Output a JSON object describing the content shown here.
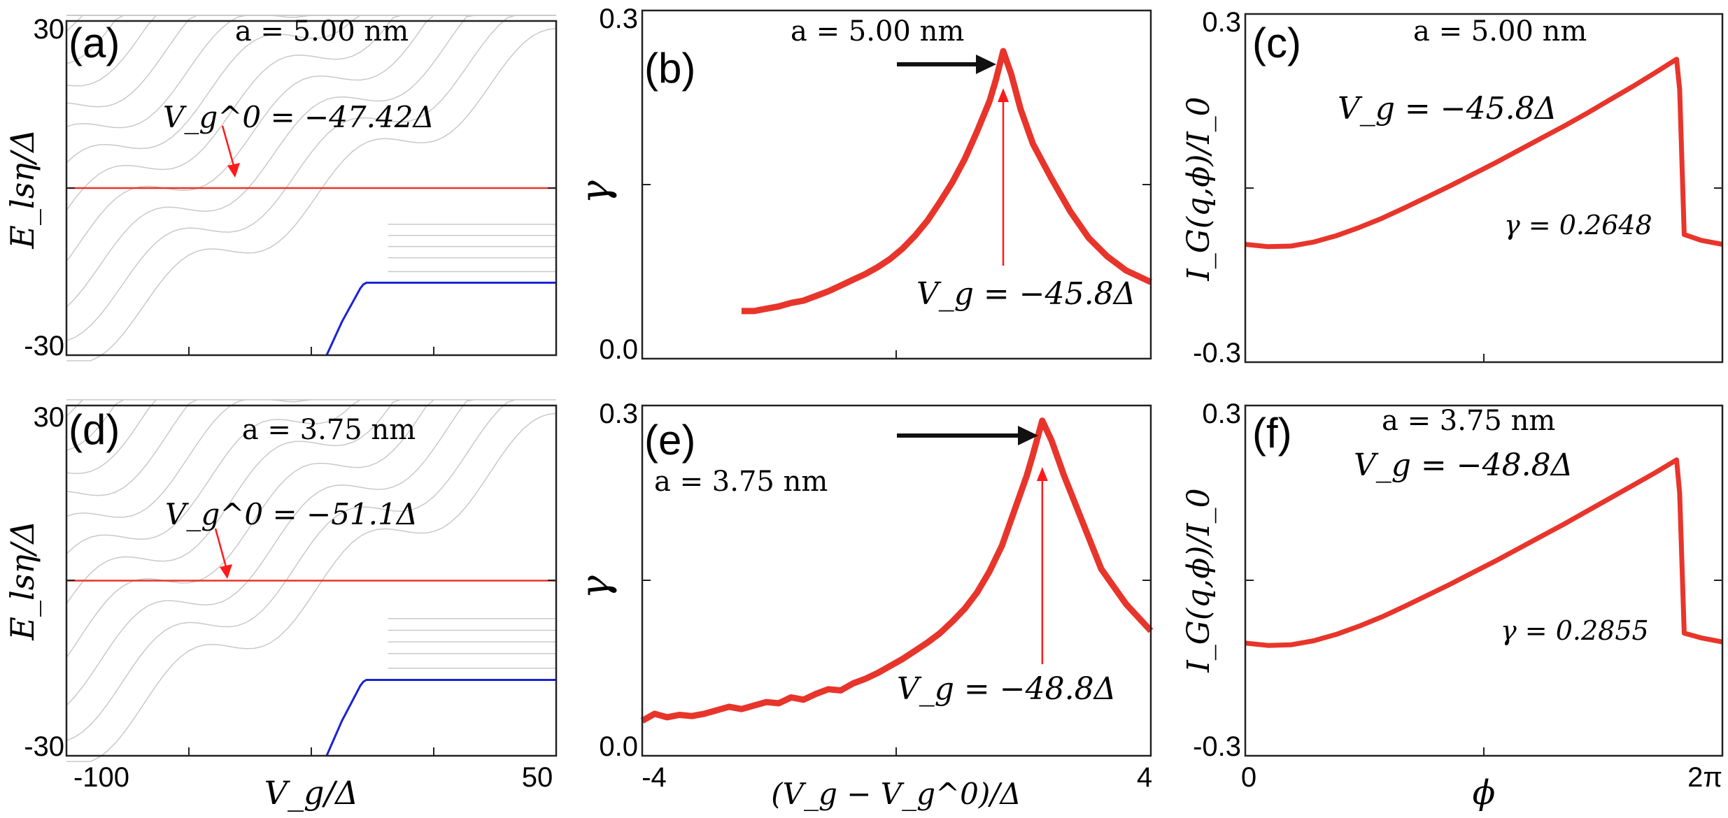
{
  "colors": {
    "red": "#e8352b",
    "grid": "#c9c9c9",
    "blue": "#1a22d6",
    "black": "#111111",
    "arrow_red": "#ff1a1a"
  },
  "panels": {
    "a": {
      "label": "(a)",
      "a_text": "a = 5.00 nm",
      "v0_text": "V_g^0 = −47.42Δ",
      "ylabel": "E_lsη/Δ",
      "y_ticks": [
        "30",
        "-30"
      ]
    },
    "b": {
      "label": "(b)",
      "a_text": "a = 5.00 nm",
      "vg_text": "V_g = −45.8Δ",
      "ylabel": "γ",
      "y_ticks": [
        "0.3",
        "0.0"
      ]
    },
    "c": {
      "label": "(c)",
      "a_text": "a = 5.00 nm",
      "vg_text": "V_g = −45.8Δ",
      "gamma_text": "γ = 0.2648",
      "ylabel": "I_G(q,ϕ)/I_0",
      "y_ticks": [
        "0.3",
        "-0.3"
      ]
    },
    "d": {
      "label": "(d)",
      "a_text": "a = 3.75 nm",
      "v0_text": "V_g^0 = −51.1Δ",
      "ylabel": "E_lsη/Δ",
      "y_ticks": [
        "30",
        "-30"
      ],
      "x_ticks": [
        "-100",
        "50"
      ],
      "xlabel": "V_g/Δ"
    },
    "e": {
      "label": "(e)",
      "a_text": "a = 3.75 nm",
      "vg_text": "V_g = −48.8Δ",
      "ylabel": "γ",
      "y_ticks": [
        "0.3",
        "0.0"
      ],
      "x_ticks": [
        "-4",
        "4"
      ],
      "xlabel": "(V_g − V_g^0)/Δ"
    },
    "f": {
      "label": "(f)",
      "a_text": "a = 3.75 nm",
      "vg_text": "V_g = −48.8Δ",
      "gamma_text": "γ = 0.2855",
      "ylabel": "I_G(q,ϕ)/I_0",
      "y_ticks": [
        "0.3",
        "-0.3"
      ],
      "x_ticks": [
        "0",
        "2π"
      ],
      "xlabel": "ϕ"
    }
  },
  "chart_data": [
    {
      "panel": "a",
      "type": "line",
      "title": "",
      "xlabel": "V_g/Δ",
      "ylabel": "E_lsη/Δ",
      "xlim": [
        -110,
        50
      ],
      "ylim": [
        -30,
        30
      ],
      "reference_line": {
        "y": 0,
        "label": "V_g^0 = −47.42Δ"
      },
      "ground_state": {
        "x": [
          -25,
          -20,
          -16,
          -14,
          -13,
          -12,
          50
        ],
        "y": [
          -30,
          -24,
          -20,
          -18,
          -17.3,
          -17,
          -17
        ]
      },
      "note": "grey curves: level spectrum E_lsη(V_g)"
    },
    {
      "panel": "b",
      "type": "line",
      "title": "",
      "xlabel": "(V_g − V_g^0)/Δ",
      "ylabel": "γ",
      "xlim": [
        -4.2,
        4
      ],
      "ylim": [
        0,
        0.3
      ],
      "series": [
        {
          "name": "a = 5.00 nm",
          "x": [
            -2.6,
            -2.4,
            -2.2,
            -2.0,
            -1.8,
            -1.6,
            -1.4,
            -1.2,
            -1.0,
            -0.8,
            -0.6,
            -0.4,
            -0.2,
            0.0,
            0.2,
            0.4,
            0.6,
            0.8,
            1.0,
            1.2,
            1.4,
            1.5,
            1.62,
            1.75,
            1.9,
            2.1,
            2.4,
            2.7,
            3.0,
            3.3,
            3.6,
            4.0
          ],
          "y": [
            0.041,
            0.041,
            0.043,
            0.045,
            0.048,
            0.05,
            0.054,
            0.058,
            0.063,
            0.068,
            0.073,
            0.079,
            0.086,
            0.095,
            0.106,
            0.119,
            0.135,
            0.152,
            0.172,
            0.196,
            0.222,
            0.24,
            0.265,
            0.245,
            0.215,
            0.185,
            0.155,
            0.127,
            0.104,
            0.088,
            0.076,
            0.066
          ]
        }
      ],
      "annotation": {
        "x": 1.62,
        "label": "V_g = −45.8Δ"
      }
    },
    {
      "panel": "c",
      "type": "line",
      "title": "",
      "xlabel": "ϕ",
      "ylabel": "I_G(q,ϕ)/I_0",
      "xlim": [
        0,
        6.283
      ],
      "ylim": [
        -0.3,
        0.3
      ],
      "series": [
        {
          "name": "γ = 0.2648",
          "x": [
            0,
            0.3,
            0.6,
            0.9,
            1.2,
            1.5,
            1.8,
            2.1,
            2.4,
            2.7,
            3.0,
            3.3,
            3.6,
            3.9,
            4.2,
            4.5,
            4.8,
            5.1,
            5.4,
            5.58,
            5.68,
            5.72,
            5.78,
            6.0,
            6.283
          ],
          "y": [
            -0.097,
            -0.101,
            -0.1,
            -0.093,
            -0.082,
            -0.068,
            -0.052,
            -0.034,
            -0.015,
            0.004,
            0.024,
            0.044,
            0.065,
            0.086,
            0.107,
            0.129,
            0.152,
            0.175,
            0.199,
            0.214,
            0.222,
            0.17,
            -0.08,
            -0.09,
            -0.097
          ]
        }
      ]
    },
    {
      "panel": "d",
      "type": "line",
      "title": "",
      "xlabel": "V_g/Δ",
      "ylabel": "E_lsη/Δ",
      "xlim": [
        -110,
        50
      ],
      "ylim": [
        -30,
        30
      ],
      "reference_line": {
        "y": 0,
        "label": "V_g^0 = −51.1Δ"
      },
      "ground_state": {
        "x": [
          -25,
          -20,
          -16,
          -14,
          -13,
          -12,
          50
        ],
        "y": [
          -30,
          -24,
          -20,
          -18,
          -17.3,
          -17,
          -17
        ]
      },
      "note": "grey curves: level spectrum E_lsη(V_g)"
    },
    {
      "panel": "e",
      "type": "line",
      "title": "",
      "xlabel": "(V_g − V_g^0)/Δ",
      "ylabel": "γ",
      "xlim": [
        -4.2,
        4
      ],
      "ylim": [
        0,
        0.3
      ],
      "series": [
        {
          "name": "a = 3.75 nm",
          "x": [
            -4.2,
            -4.1,
            -4.0,
            -3.8,
            -3.6,
            -3.4,
            -3.2,
            -3.0,
            -2.8,
            -2.6,
            -2.4,
            -2.2,
            -2.0,
            -1.8,
            -1.6,
            -1.4,
            -1.2,
            -1.0,
            -0.8,
            -0.6,
            -0.4,
            -0.2,
            0.0,
            0.2,
            0.4,
            0.6,
            0.8,
            1.0,
            1.2,
            1.4,
            1.6,
            1.8,
            2.0,
            2.1,
            2.25,
            2.4,
            2.6,
            2.9,
            3.2,
            3.6,
            4.0
          ],
          "y": [
            0.03,
            0.033,
            0.036,
            0.033,
            0.035,
            0.034,
            0.036,
            0.039,
            0.042,
            0.04,
            0.043,
            0.046,
            0.045,
            0.05,
            0.048,
            0.053,
            0.057,
            0.056,
            0.062,
            0.066,
            0.071,
            0.077,
            0.083,
            0.09,
            0.097,
            0.105,
            0.115,
            0.126,
            0.14,
            0.158,
            0.18,
            0.21,
            0.24,
            0.258,
            0.287,
            0.27,
            0.24,
            0.2,
            0.16,
            0.13,
            0.107
          ]
        }
      ],
      "annotation": {
        "x": 2.25,
        "label": "V_g = −48.8Δ"
      }
    },
    {
      "panel": "f",
      "type": "line",
      "title": "",
      "xlabel": "ϕ",
      "ylabel": "I_G(q,ϕ)/I_0",
      "xlim": [
        0,
        6.283
      ],
      "ylim": [
        -0.3,
        0.3
      ],
      "series": [
        {
          "name": "γ = 0.2855",
          "x": [
            0,
            0.3,
            0.6,
            0.9,
            1.2,
            1.5,
            1.8,
            2.1,
            2.4,
            2.7,
            3.0,
            3.3,
            3.6,
            3.9,
            4.2,
            4.5,
            4.8,
            5.1,
            5.4,
            5.58,
            5.68,
            5.72,
            5.78,
            6.0,
            6.283
          ],
          "y": [
            -0.107,
            -0.111,
            -0.11,
            -0.103,
            -0.092,
            -0.078,
            -0.062,
            -0.044,
            -0.025,
            -0.006,
            0.014,
            0.034,
            0.055,
            0.076,
            0.097,
            0.119,
            0.141,
            0.163,
            0.185,
            0.199,
            0.207,
            0.15,
            -0.09,
            -0.098,
            -0.105
          ]
        }
      ]
    }
  ]
}
